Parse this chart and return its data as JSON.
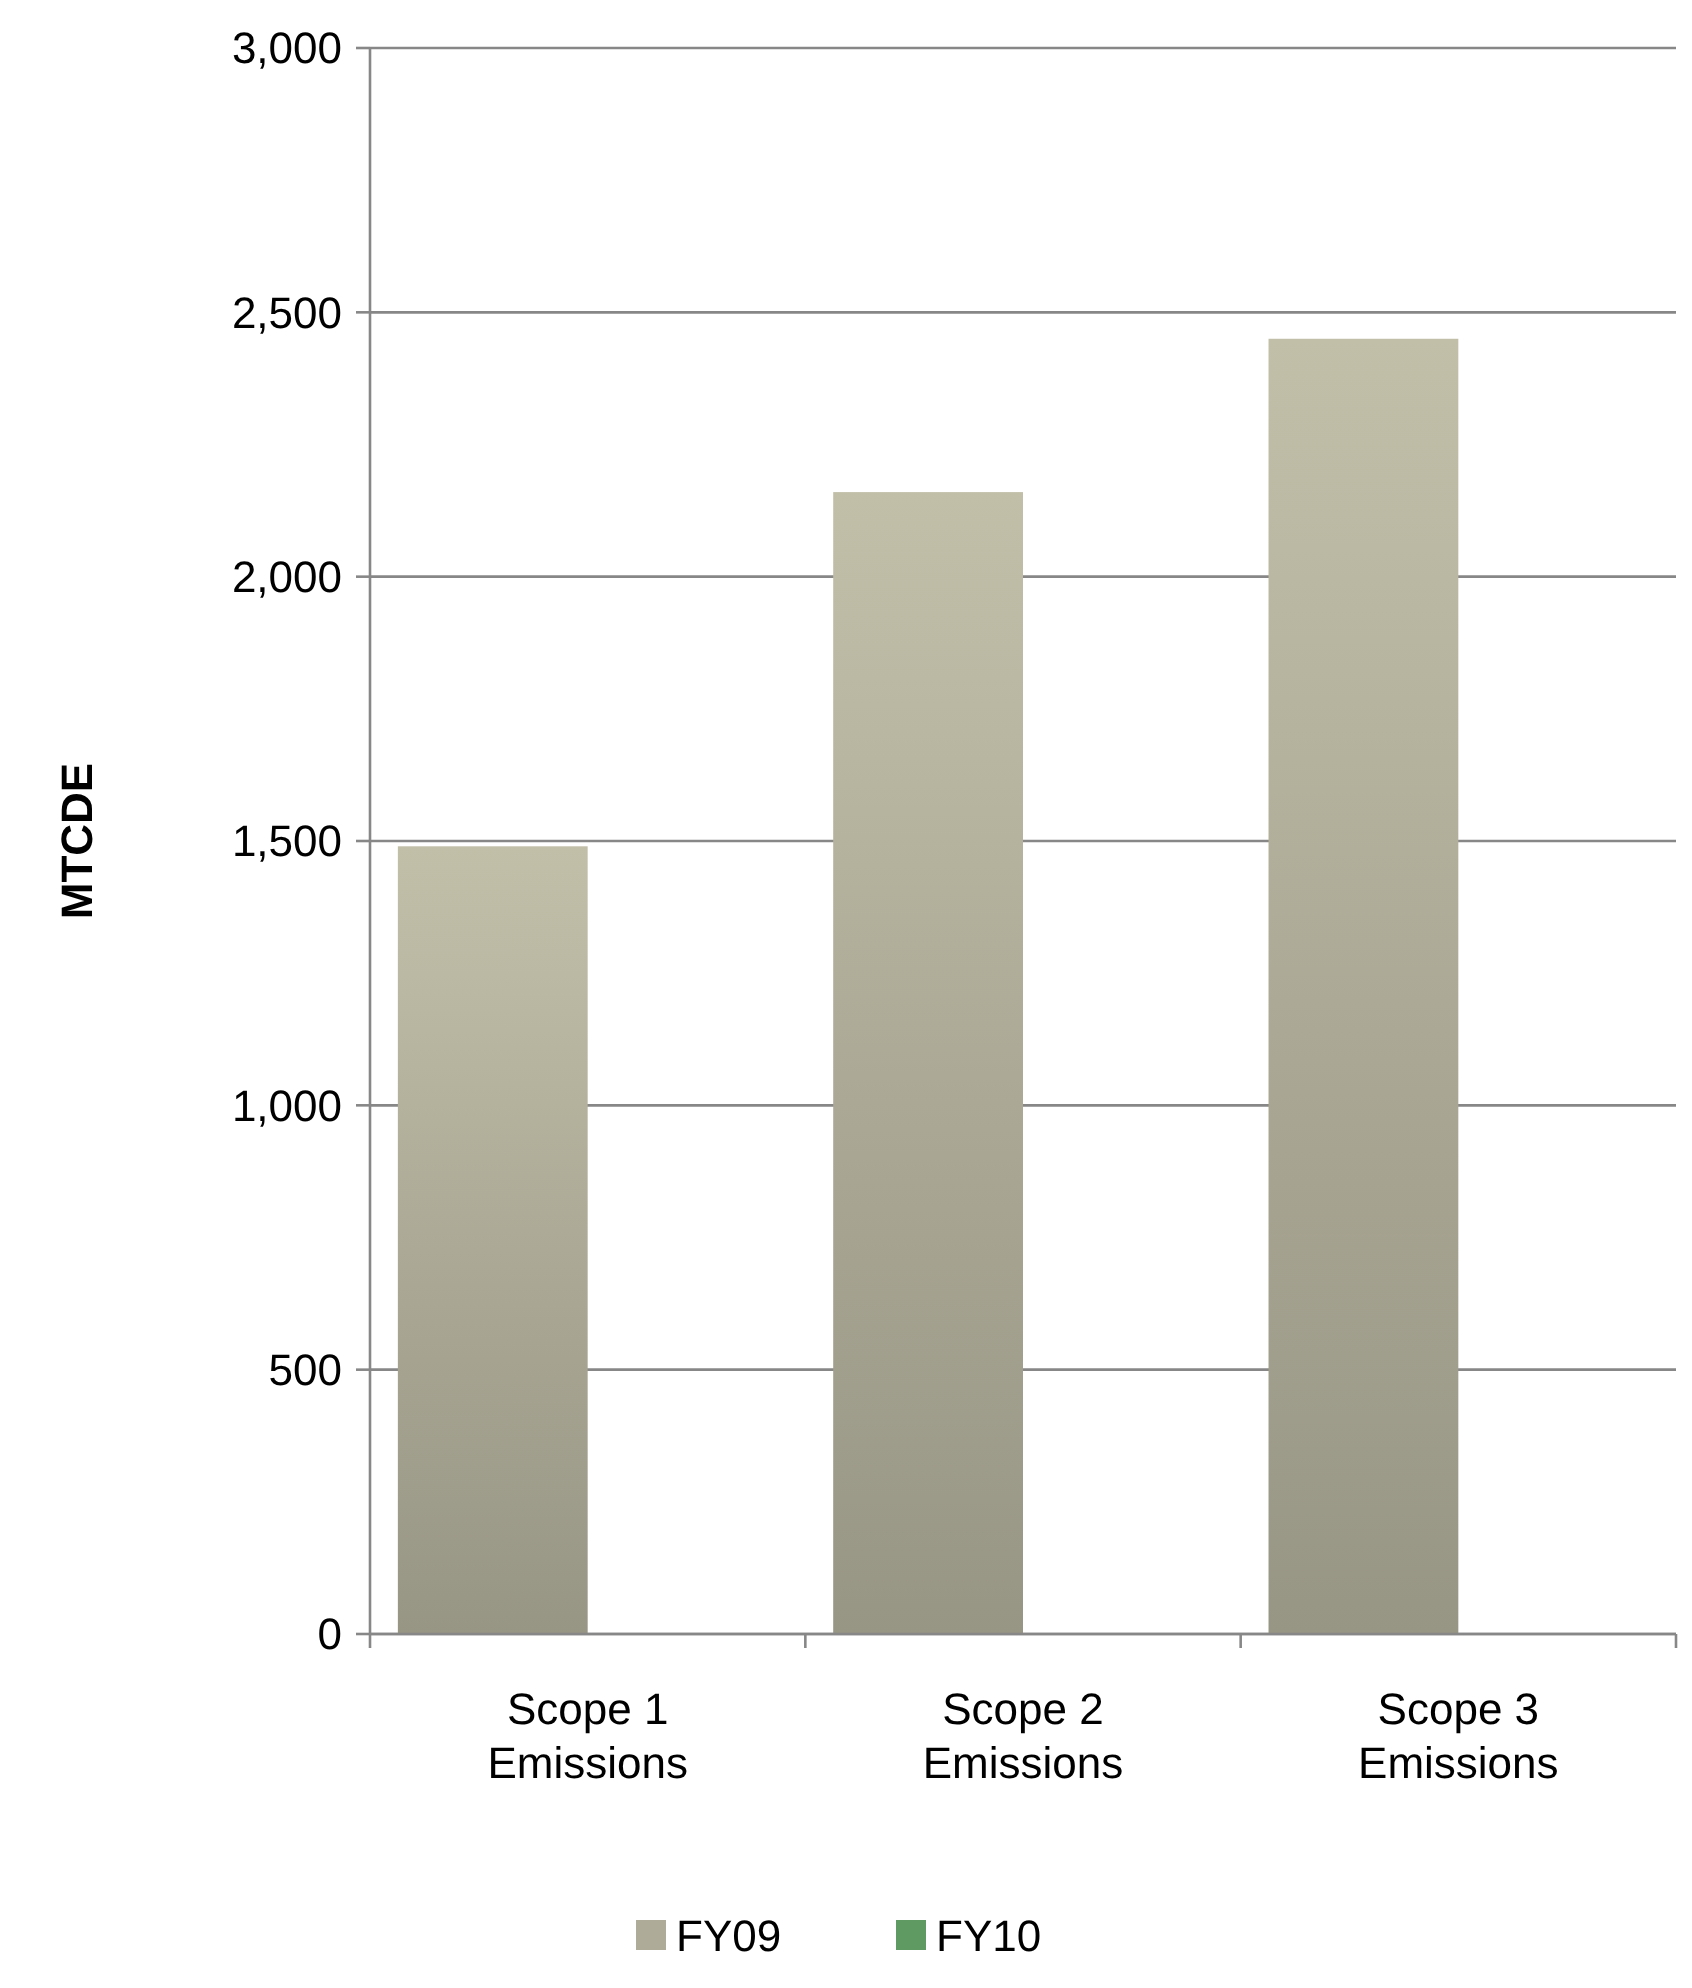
{
  "chart_data": {
    "type": "bar",
    "ylabel": "MTCDE",
    "categories": [
      "Scope 1 Emissions",
      "Scope 2 Emissions",
      "Scope 3 Emissions"
    ],
    "series": [
      {
        "name": "FY09",
        "color": "#aeac98",
        "values": [
          1490,
          2160,
          2450
        ]
      },
      {
        "name": "FY10",
        "color": "#5f9a63",
        "values": [
          null,
          null,
          null
        ]
      }
    ],
    "ylim": [
      0,
      3000
    ],
    "yticks": [
      {
        "value": 0,
        "label": "0"
      },
      {
        "value": 500,
        "label": "500"
      },
      {
        "value": 1000,
        "label": "1,000"
      },
      {
        "value": 1500,
        "label": "1,500"
      },
      {
        "value": 2000,
        "label": "2,000"
      },
      {
        "value": 2500,
        "label": "2,500"
      },
      {
        "value": 3000,
        "label": "3,000"
      }
    ],
    "grid": "y",
    "legend": "bottom"
  }
}
